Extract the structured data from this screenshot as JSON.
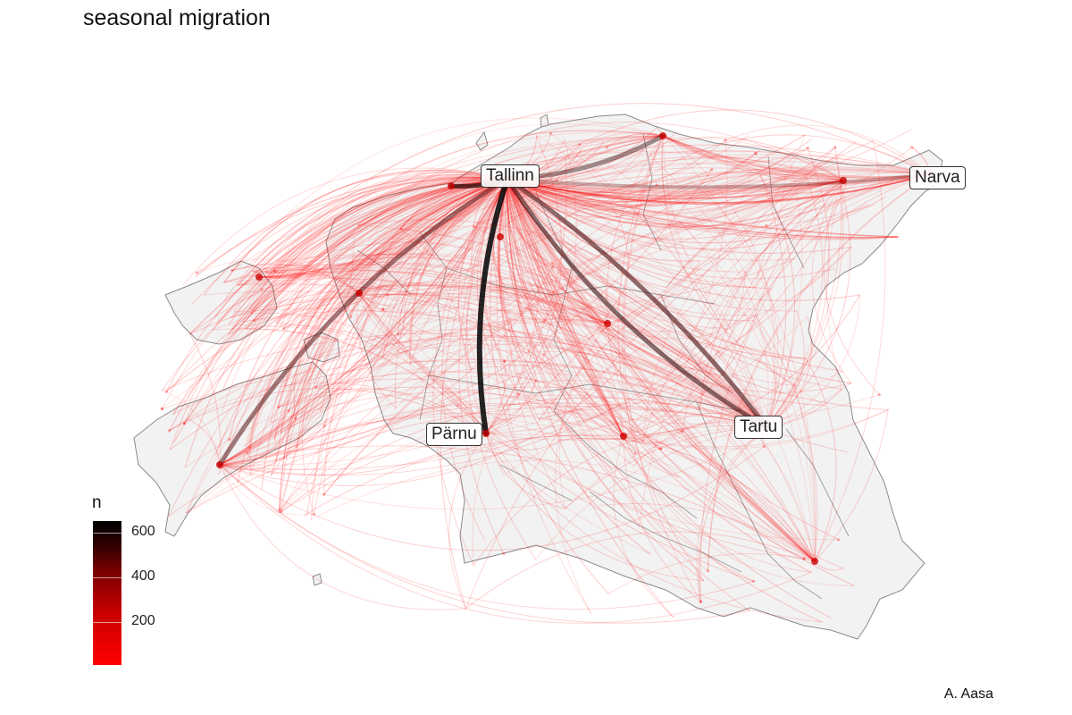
{
  "title": "seasonal migration",
  "credit": "A. Aasa",
  "legend": {
    "title": "n",
    "ticks": [
      {
        "value": 600,
        "label": "600"
      },
      {
        "value": 400,
        "label": "400"
      },
      {
        "value": 200,
        "label": "200"
      }
    ],
    "min": 0,
    "max": 640,
    "colors": [
      "#ff0000",
      "#000000"
    ]
  },
  "cities": [
    {
      "name": "Tallinn"
    },
    {
      "name": "Narva"
    },
    {
      "name": "Pärnu"
    },
    {
      "name": "Tartu"
    }
  ],
  "colors": {
    "land": "#f2f2f2",
    "border": "#8a8a8a",
    "flow_low": "#ff0000",
    "flow_high": "#000000"
  }
}
